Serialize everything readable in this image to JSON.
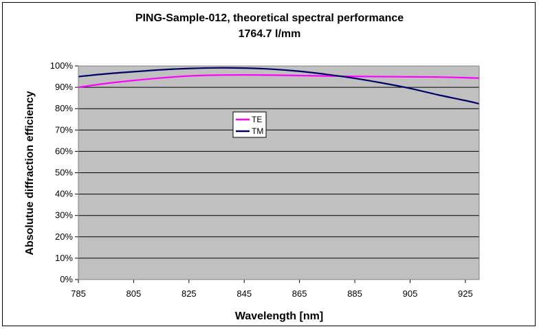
{
  "chart_data": {
    "type": "line",
    "title": "PING-Sample-012, theoretical spectral performance",
    "subtitle": "1764.7 l/mm",
    "xlabel": "Wavelength [nm]",
    "ylabel": "Absolutue diffraction efficiency",
    "xlim": [
      785,
      930
    ],
    "ylim": [
      0,
      100
    ],
    "x_ticks": [
      "785",
      "805",
      "825",
      "845",
      "865",
      "885",
      "905",
      "925"
    ],
    "y_ticks": [
      "0%",
      "10%",
      "20%",
      "30%",
      "40%",
      "50%",
      "60%",
      "70%",
      "80%",
      "90%",
      "100%"
    ],
    "grid": true,
    "legend_position": "center-left inside plot",
    "colors": {
      "plot_background": "#c0c0c0",
      "te": "#ff00ff",
      "tm": "#000066"
    },
    "series": [
      {
        "name": "TE",
        "x": [
          785,
          795,
          805,
          815,
          825,
          835,
          845,
          855,
          865,
          875,
          885,
          895,
          905,
          915,
          925,
          930
        ],
        "y": [
          90.0,
          91.8,
          93.2,
          94.4,
          95.3,
          95.7,
          95.8,
          95.7,
          95.5,
          95.3,
          95.1,
          95.0,
          94.9,
          94.8,
          94.5,
          94.3
        ]
      },
      {
        "name": "TM",
        "x": [
          785,
          795,
          805,
          815,
          825,
          835,
          845,
          855,
          865,
          875,
          885,
          895,
          905,
          915,
          925,
          930
        ],
        "y": [
          95.0,
          96.3,
          97.3,
          98.2,
          98.8,
          99.1,
          99.0,
          98.5,
          97.5,
          96.0,
          94.2,
          92.0,
          89.5,
          86.5,
          83.8,
          82.3
        ]
      }
    ]
  }
}
